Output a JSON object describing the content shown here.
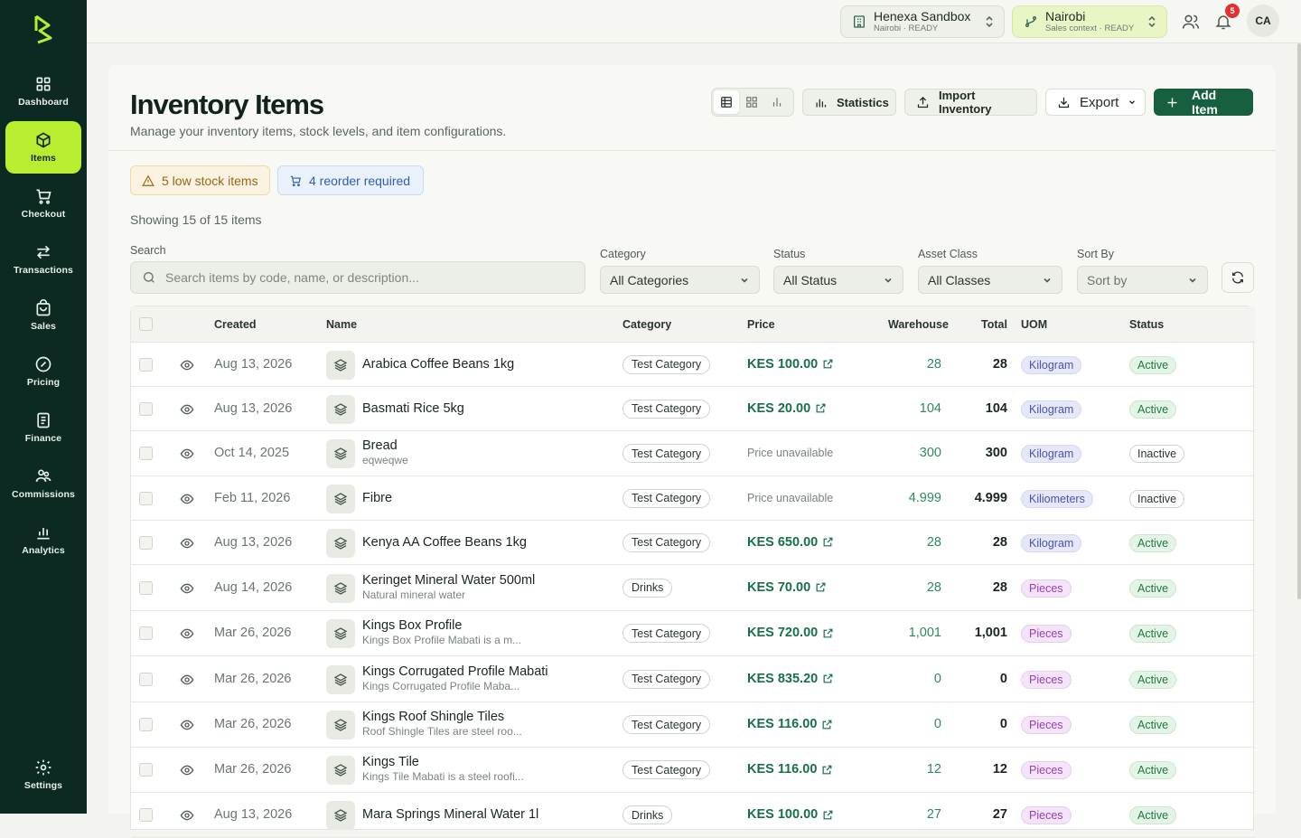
{
  "sidebar": {
    "items": [
      {
        "label": "Dashboard",
        "icon": "grid-icon"
      },
      {
        "label": "Items",
        "icon": "box-icon"
      },
      {
        "label": "Checkout",
        "icon": "cart-icon"
      },
      {
        "label": "Transactions",
        "icon": "arrows-icon"
      },
      {
        "label": "Sales",
        "icon": "bag-icon"
      },
      {
        "label": "Pricing",
        "icon": "tag-icon"
      },
      {
        "label": "Finance",
        "icon": "document-icon"
      },
      {
        "label": "Commissions",
        "icon": "handshake-icon"
      },
      {
        "label": "Analytics",
        "icon": "bar-chart-icon"
      }
    ],
    "settings_label": "Settings",
    "active": "Items"
  },
  "topbar": {
    "org_name": "Henexa Sandbox",
    "org_sub": "Nairobi · READY",
    "branch_name": "Nairobi",
    "branch_sub": "Sales context · READY",
    "notification_count": "5",
    "avatar_initials": "CA"
  },
  "header": {
    "title": "Inventory Items",
    "subtitle": "Manage your inventory items, stock levels, and item configurations.",
    "statistics_label": "Statistics",
    "import_label": "Import Inventory",
    "export_label": "Export",
    "add_label": "Add Item"
  },
  "alerts": {
    "low_stock": "5 low stock items",
    "reorder": "4 reorder required"
  },
  "showing": "Showing 15 of 15 items",
  "filters": {
    "search_label": "Search",
    "search_placeholder": "Search items by code, name, or description...",
    "category_label": "Category",
    "category_value": "All Categories",
    "status_label": "Status",
    "status_value": "All Status",
    "asset_label": "Asset Class",
    "asset_value": "All Classes",
    "sort_label": "Sort By",
    "sort_value": "Sort by"
  },
  "table": {
    "columns": [
      "Created",
      "Name",
      "Category",
      "Price",
      "Warehouse",
      "Total",
      "UOM",
      "Status"
    ],
    "rows": [
      {
        "created": "Aug 13, 2026",
        "name": "Arabica Coffee Beans 1kg",
        "desc": "",
        "category": "Test Category",
        "price": "KES 100.00",
        "warehouse": "28",
        "total": "28",
        "uom": "Kilogram",
        "status": "Active"
      },
      {
        "created": "Aug 13, 2026",
        "name": "Basmati Rice 5kg",
        "desc": "",
        "category": "Test Category",
        "price": "KES 20.00",
        "warehouse": "104",
        "total": "104",
        "uom": "Kilogram",
        "status": "Active"
      },
      {
        "created": "Oct 14, 2025",
        "name": "Bread",
        "desc": "eqweqwe",
        "category": "Test Category",
        "price": "Price unavailable",
        "warehouse": "300",
        "total": "300",
        "uom": "Kilogram",
        "status": "Inactive"
      },
      {
        "created": "Feb 11, 2026",
        "name": "Fibre",
        "desc": "",
        "category": "Test Category",
        "price": "Price unavailable",
        "warehouse": "4.999",
        "total": "4.999",
        "uom": "Kiliometers",
        "status": "Inactive"
      },
      {
        "created": "Aug 13, 2026",
        "name": "Kenya AA Coffee Beans 1kg",
        "desc": "",
        "category": "Test Category",
        "price": "KES 650.00",
        "warehouse": "28",
        "total": "28",
        "uom": "Kilogram",
        "status": "Active"
      },
      {
        "created": "Aug 14, 2026",
        "name": "Keringet Mineral Water 500ml",
        "desc": "Natural mineral water",
        "category": "Drinks",
        "price": "KES 70.00",
        "warehouse": "28",
        "total": "28",
        "uom": "Pieces",
        "status": "Active"
      },
      {
        "created": "Mar 26, 2026",
        "name": "Kings Box Profile",
        "desc": "Kings Box Profile Mabati is a m...",
        "category": "Test Category",
        "price": "KES 720.00",
        "warehouse": "1,001",
        "total": "1,001",
        "uom": "Pieces",
        "status": "Active"
      },
      {
        "created": "Mar 26, 2026",
        "name": "Kings Corrugated Profile Mabati",
        "desc": "Kings Corrugated Profile Maba...",
        "category": "Test Category",
        "price": "KES 835.20",
        "warehouse": "0",
        "total": "0",
        "uom": "Pieces",
        "status": "Active"
      },
      {
        "created": "Mar 26, 2026",
        "name": "Kings Roof Shingle Tiles",
        "desc": "Roof Shingle Tiles are steel roo...",
        "category": "Test Category",
        "price": "KES 116.00",
        "warehouse": "0",
        "total": "0",
        "uom": "Pieces",
        "status": "Active"
      },
      {
        "created": "Mar 26, 2026",
        "name": "Kings Tile",
        "desc": "Kings Tile Mabati is a steel roofi...",
        "category": "Test Category",
        "price": "KES 116.00",
        "warehouse": "12",
        "total": "12",
        "uom": "Pieces",
        "status": "Active"
      },
      {
        "created": "Aug 13, 2026",
        "name": "Mara Springs Mineral Water 1l",
        "desc": "",
        "category": "Drinks",
        "price": "KES 100.00",
        "warehouse": "27",
        "total": "27",
        "uom": "Pieces",
        "status": "Active"
      }
    ]
  },
  "colors": {
    "sidebar_bg": "#0c2a22",
    "accent_lime": "#b8ee2f",
    "primary_green": "#17603f",
    "price_green": "#17704a"
  }
}
